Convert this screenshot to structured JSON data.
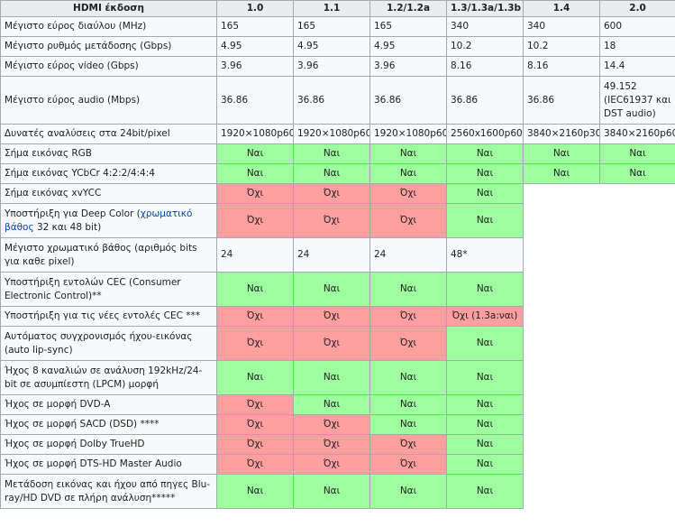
{
  "header": {
    "feature": "HDMI έκδοση",
    "versions": [
      "1.0",
      "1.1",
      "1.2/1.2a",
      "1.3/1.3a/1.3b",
      "1.4",
      "2.0"
    ]
  },
  "rows": [
    {
      "feature": "Μέγιστο εύρος διαύλου (MHz)",
      "cells": [
        "165",
        "165",
        "165",
        "340",
        "340",
        "600"
      ]
    },
    {
      "feature": "Μέγιστο ρυθμός μετάδοσης (Gbps)",
      "cells": [
        "4.95",
        "4.95",
        "4.95",
        "10.2",
        "10.2",
        "18"
      ]
    },
    {
      "feature": "Μέγιστο εύρος video (Gbps)",
      "cells": [
        "3.96",
        "3.96",
        "3.96",
        "8.16",
        "8.16",
        "14.4"
      ]
    },
    {
      "feature": "Μέγιστο εύρος audio (Mbps)",
      "cells": [
        "36.86",
        "36.86",
        "36.86",
        "36.86",
        "36.86",
        "49.152 (IEC61937 και DST audio)"
      ]
    },
    {
      "feature": "Δυνατές αναλύσεις στα 24bit/pixel",
      "cells": [
        "1920×1080p60",
        "1920×1080p60",
        "1920×1080p60",
        "2560x1600p60",
        "3840×2160p30",
        "3840×2160p60"
      ]
    },
    {
      "feature": "Σήμα εικόνας RGB",
      "cells": [
        "Ναι",
        "Ναι",
        "Ναι",
        "Ναι",
        "Ναι",
        "Ναι"
      ]
    },
    {
      "feature": "Σήμα εικόνας YCbCr 4:2:2/4:4:4",
      "cells": [
        "Ναι",
        "Ναι",
        "Ναι",
        "Ναι",
        "Ναι",
        "Ναι"
      ]
    },
    {
      "feature": "Σήμα εικόνας xvYCC",
      "cells": [
        "Όχι",
        "Όχι",
        "Όχι",
        "Ναι"
      ]
    },
    {
      "feature_pre": "Υποστήριξη για Deep Color (",
      "feature_link": "χρωματικό βάθος",
      "feature_post": " 32 και 48 bit)",
      "cells": [
        "Όχι",
        "Όχι",
        "Όχι",
        "Ναι"
      ]
    },
    {
      "feature": "Μέγιστο χρωματικό βάθος (αριθμός bits για καθε pixel)",
      "cells": [
        "24",
        "24",
        "24",
        "48*"
      ]
    },
    {
      "feature": "Υποστήριξη εντολών CEC (Consumer Electronic Control)**",
      "cells": [
        "Ναι",
        "Ναι",
        "Ναι",
        "Ναι"
      ]
    },
    {
      "feature": "Υποστήριξη για τις νέες εντολές CEC ***",
      "cells": [
        "Όχι",
        "Όχι",
        "Όχι",
        "Όχι (1.3a:ναι)"
      ]
    },
    {
      "feature": "Αυτόματος συγχρονισμός ήχου-εικόνας (auto lip-sync)",
      "cells": [
        "Όχι",
        "Όχι",
        "Όχι",
        "Ναι"
      ]
    },
    {
      "feature": "Ήχος 8 καναλιών σε ανάλυση 192kHz/24-bit σε ασυμπίεστη (LPCM) μορφή",
      "cells": [
        "Ναι",
        "Ναι",
        "Ναι",
        "Ναι"
      ]
    },
    {
      "feature": "Ήχος σε μορφή DVD-A",
      "cells": [
        "Όχι",
        "Ναι",
        "Ναι",
        "Ναι"
      ]
    },
    {
      "feature": "Ήχος σε μορφή SACD (DSD) ****",
      "cells": [
        "Όχι",
        "Όχι",
        "Ναι",
        "Ναι"
      ]
    },
    {
      "feature": "Ήχος σε μορφή Dolby TrueHD",
      "cells": [
        "Όχι",
        "Όχι",
        "Όχι",
        "Ναι"
      ]
    },
    {
      "feature": "Ήχος σε μορφή DTS-HD Master Audio",
      "cells": [
        "Όχι",
        "Όχι",
        "Όχι",
        "Ναι"
      ]
    },
    {
      "feature": "Μετάδοση εικόνας και ήχου από πηγες Blu-ray/HD DVD σε πλήρη ανάλυση*****",
      "cells": [
        "Ναι",
        "Ναι",
        "Ναι",
        "Ναι"
      ]
    }
  ],
  "colors": {
    "yes": "#9eff9e",
    "no": "#ff9f9f",
    "header": "#eaecf0",
    "cell": "#f8f9fa",
    "link": "#0645ad"
  }
}
